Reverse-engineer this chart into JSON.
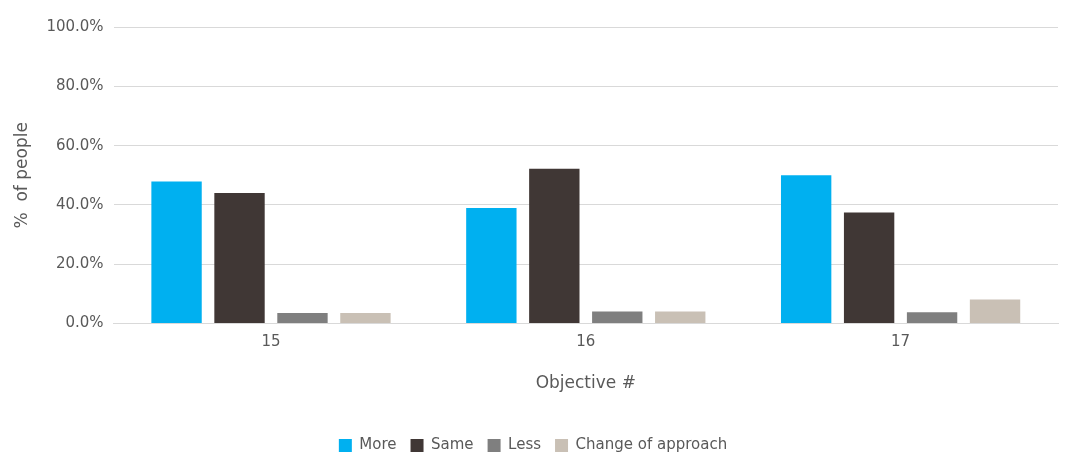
{
  "chart_data": {
    "type": "bar",
    "xlabel": "Objective #",
    "ylabel": "%  of people",
    "categories": [
      "15",
      "16",
      "17"
    ],
    "series": [
      {
        "name": "More",
        "color": "#00b0f0",
        "values": [
          47.9,
          39.0,
          50.0
        ]
      },
      {
        "name": "Same",
        "color": "#403735",
        "values": [
          44.0,
          52.2,
          37.5
        ]
      },
      {
        "name": "Less",
        "color": "#7f7f7f",
        "values": [
          3.6,
          4.1,
          3.8
        ]
      },
      {
        "name": "Change of approach",
        "color": "#c9c0b5",
        "values": [
          3.6,
          4.1,
          8.1
        ]
      }
    ],
    "ylim": [
      0,
      100
    ],
    "yticks": [
      {
        "value": 0,
        "label": "0.0%"
      },
      {
        "value": 20,
        "label": "20.0%"
      },
      {
        "value": 40,
        "label": "40.0%"
      },
      {
        "value": 60,
        "label": "60.0%"
      },
      {
        "value": 80,
        "label": "80.0%"
      },
      {
        "value": 100,
        "label": "100.0%"
      }
    ],
    "grid": "y",
    "legend": "bottom"
  }
}
